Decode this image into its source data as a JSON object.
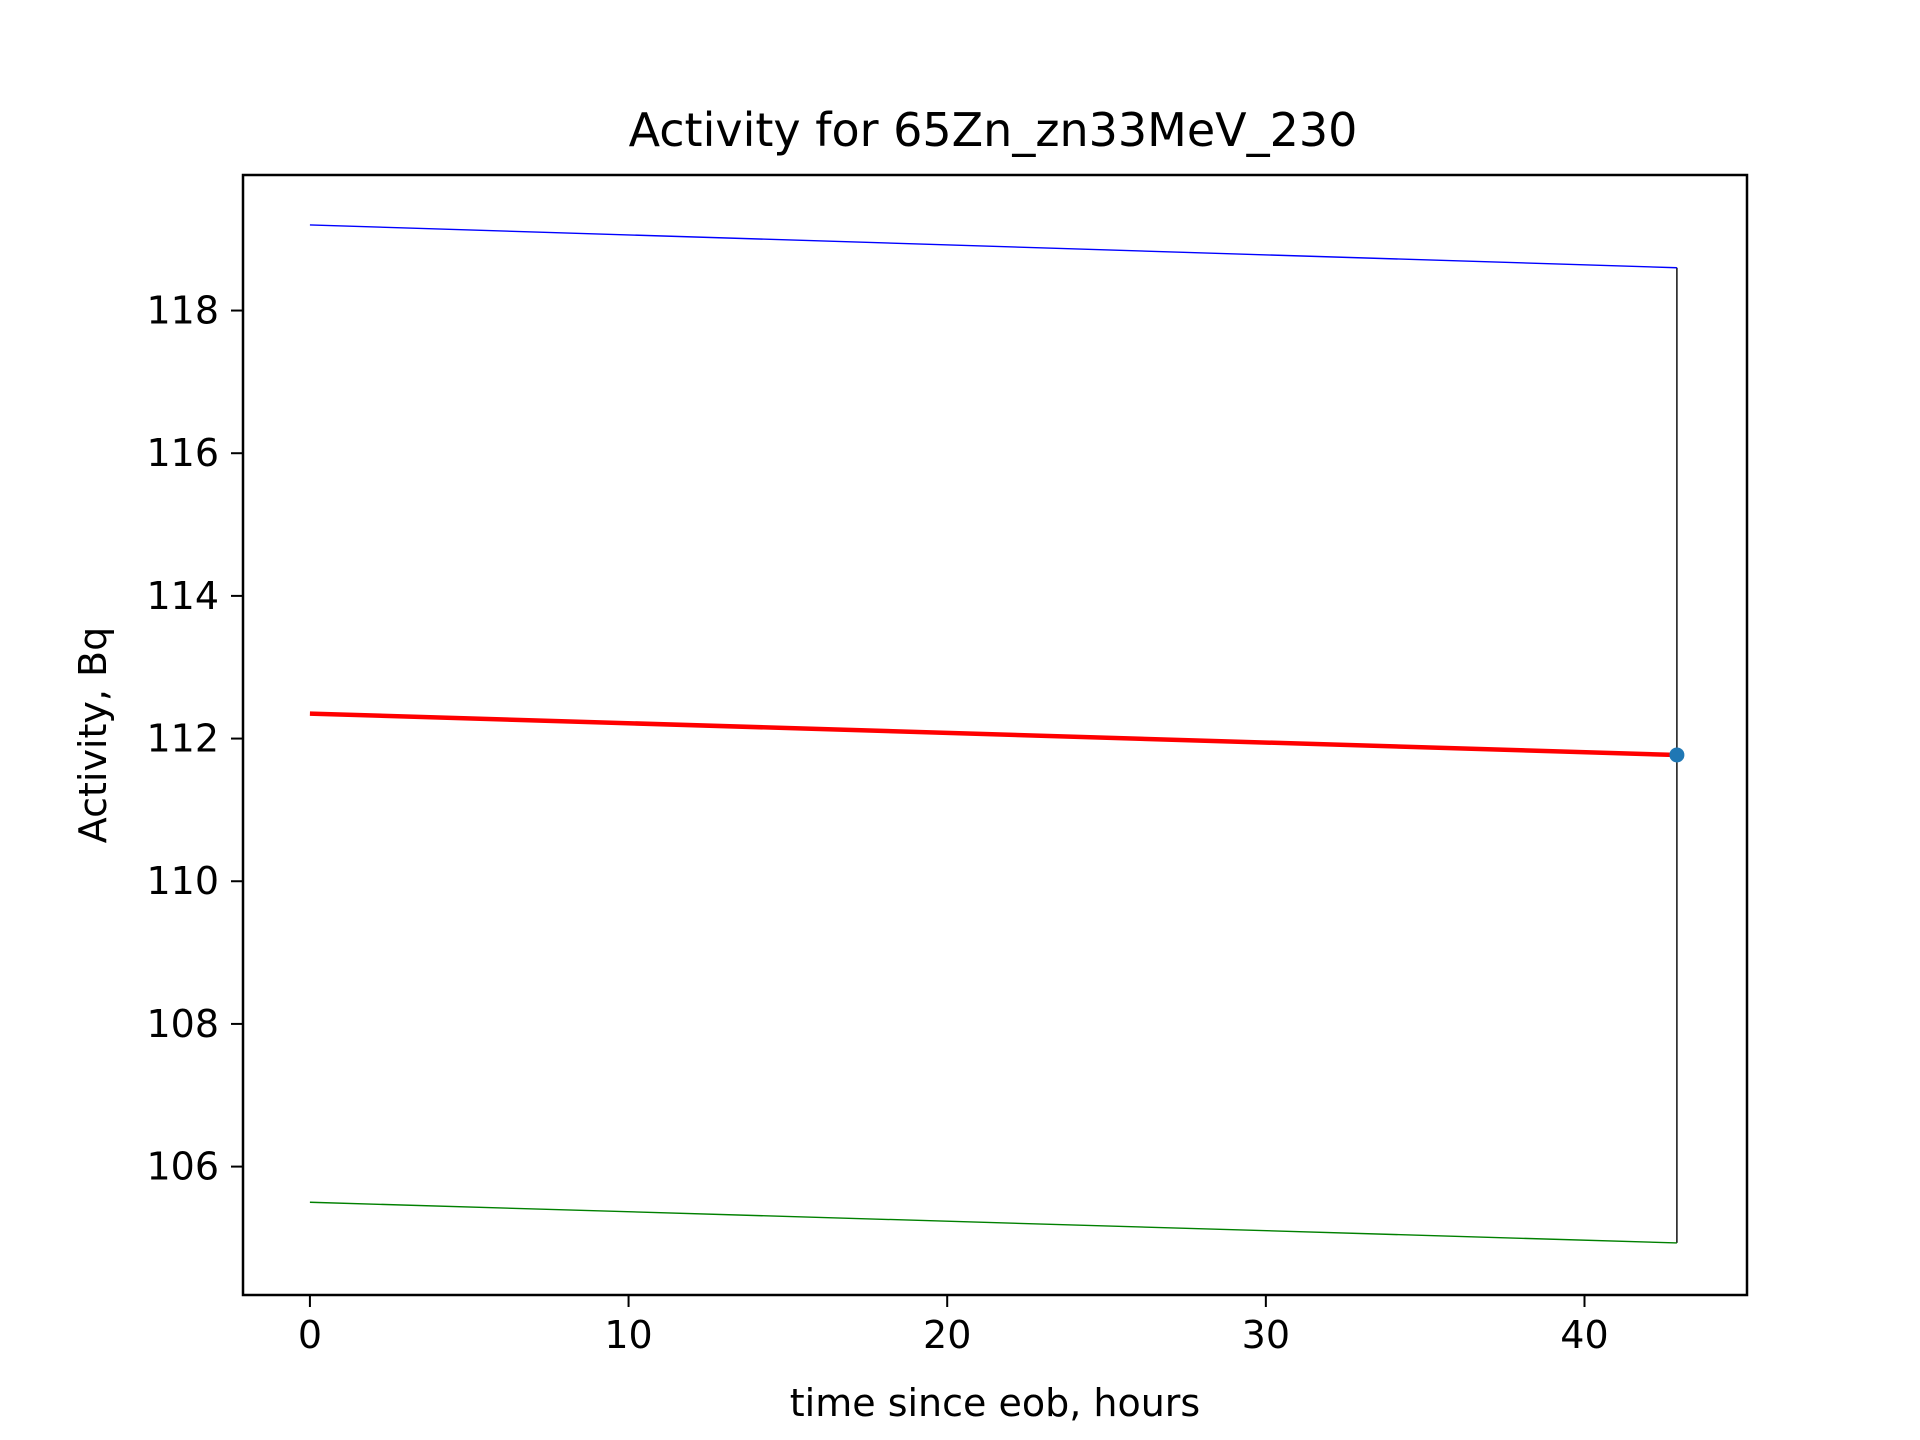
{
  "chart_data": {
    "type": "line",
    "title": "Activity for 65Zn_zn33MeV_230",
    "xlabel": "time since eob, hours",
    "ylabel": "Activity, Bq",
    "xlim": [
      -2.1,
      45.1
    ],
    "ylim": [
      104.2,
      119.9
    ],
    "xticks": [
      0,
      10,
      20,
      30,
      40
    ],
    "yticks": [
      106,
      108,
      110,
      112,
      114,
      116,
      118
    ],
    "grid": false,
    "series": [
      {
        "color": "#0000ff",
        "x": [
          0,
          42.9
        ],
        "y": [
          119.2,
          118.6
        ]
      },
      {
        "color": "#ff0000",
        "x": [
          0,
          42.9
        ],
        "y": [
          112.35,
          111.77
        ]
      },
      {
        "color": "#008000",
        "x": [
          0,
          42.9
        ],
        "y": [
          105.5,
          104.93
        ]
      }
    ],
    "error_bar": {
      "color": "#000000",
      "x": 42.9,
      "y_low": 104.93,
      "y_high": 118.6
    },
    "point": {
      "color": "#1f77b4",
      "x": 42.9,
      "y": 111.77
    }
  }
}
